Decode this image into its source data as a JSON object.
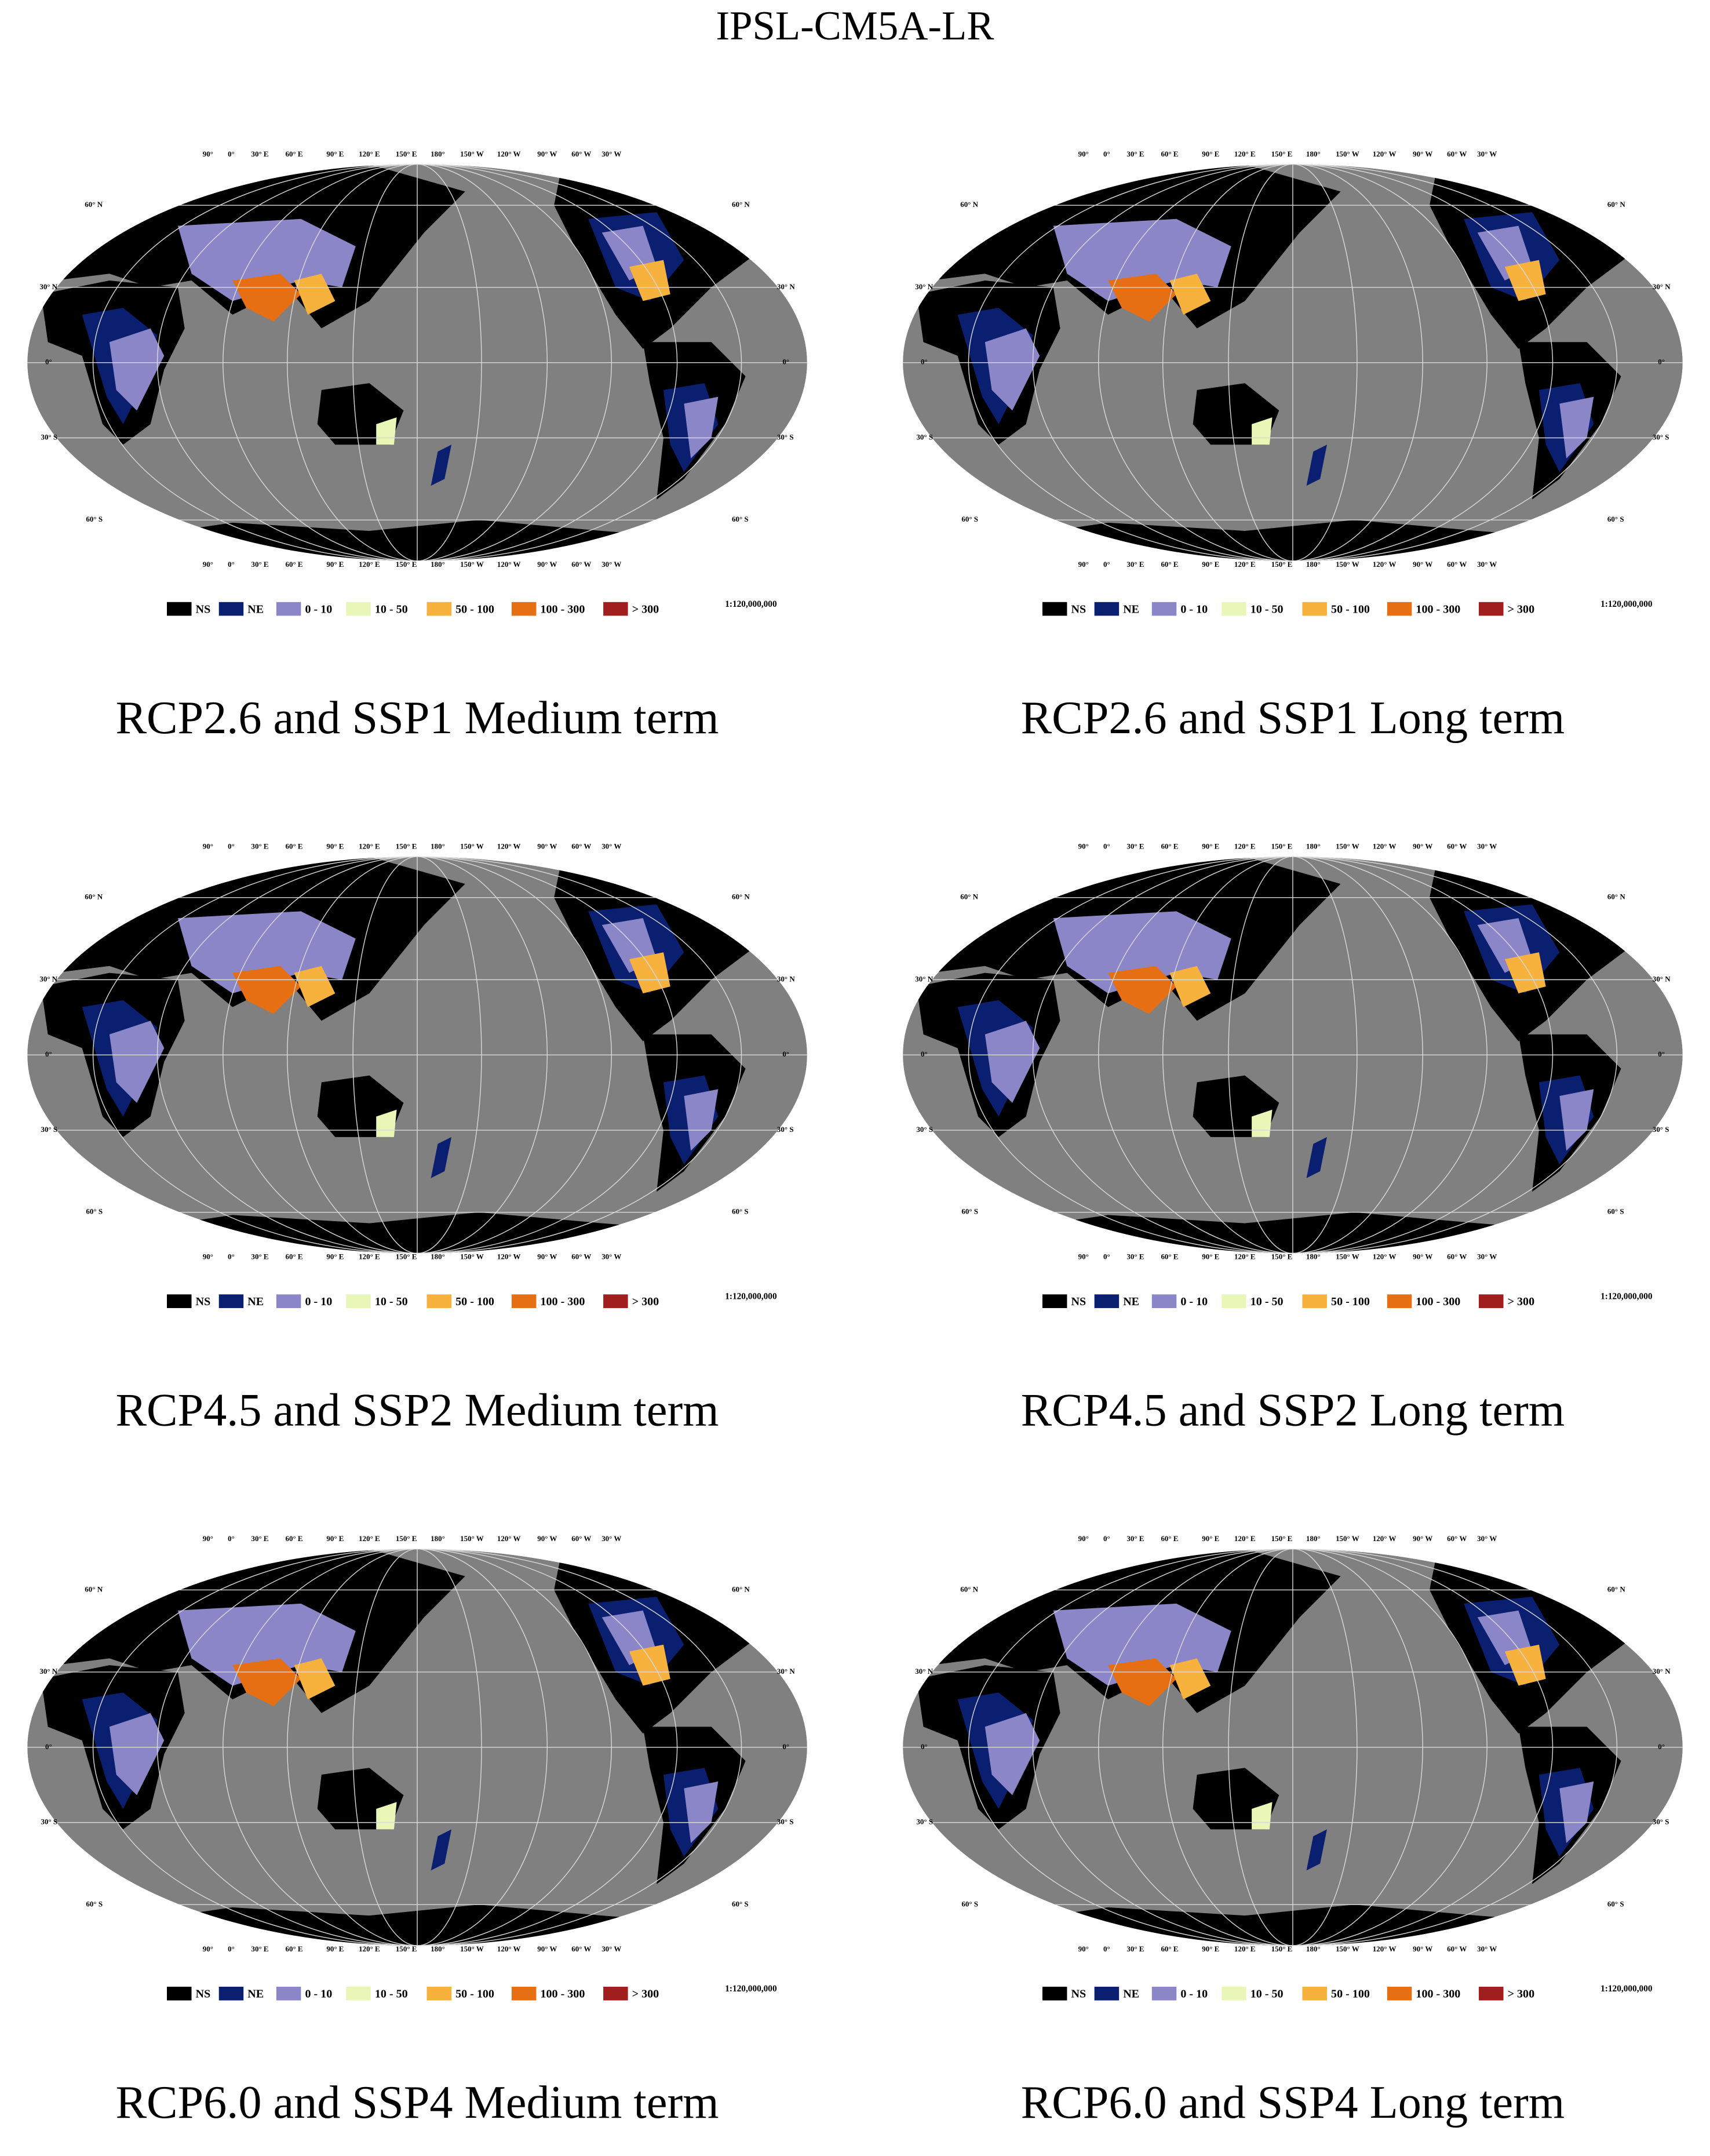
{
  "title": "IPSL-CM5A-LR",
  "panels": [
    {
      "caption": "RCP2.6 and SSP1 Medium term"
    },
    {
      "caption": "RCP2.6 and SSP1 Long term"
    },
    {
      "caption": "RCP4.5 and SSP2 Medium term"
    },
    {
      "caption": "RCP4.5 and SSP2 Long term"
    },
    {
      "caption": "RCP6.0 and SSP4 Medium term"
    },
    {
      "caption": "RCP6.0 and SSP4 Long term"
    }
  ],
  "legend": [
    {
      "label": "NS",
      "color": "#000000"
    },
    {
      "label": "NE",
      "color": "#0b1f70"
    },
    {
      "label": "0 - 10",
      "color": "#8b86c8"
    },
    {
      "label": "10 - 50",
      "color": "#e8f7b8"
    },
    {
      "label": "50 - 100",
      "color": "#f7b23e"
    },
    {
      "label": "100 - 300",
      "color": "#e56f12"
    },
    {
      "label": "> 300",
      "color": "#a11e1e"
    }
  ],
  "scale": "1:120,000,000",
  "lon_labels": [
    "90°",
    "0°",
    "30° E",
    "60° E",
    "90° E",
    "120° E",
    "150° E",
    "180°",
    "150° W",
    "120° W",
    "90° W",
    "60° W",
    "30° W"
  ],
  "lat_labels": [
    "60° N",
    "30° N",
    "0°",
    "30° S",
    "60° S"
  ]
}
